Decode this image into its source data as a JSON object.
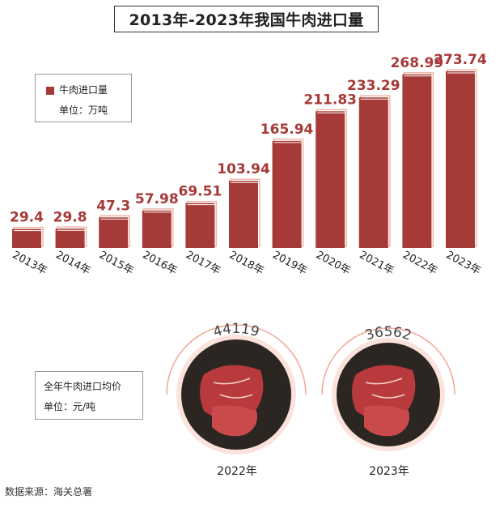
{
  "title": "2013年-2023年我国牛肉进口量",
  "legend": {
    "series_name": "牛肉进口量",
    "unit": "单位：万吨"
  },
  "chart_data": {
    "type": "bar",
    "title": "2013年-2023年我国牛肉进口量",
    "categories": [
      "2013年",
      "2014年",
      "2015年",
      "2016年",
      "2017年",
      "2018年",
      "2019年",
      "2020年",
      "2021年",
      "2022年",
      "2023年"
    ],
    "series": [
      {
        "name": "牛肉进口量",
        "values": [
          29.4,
          29.8,
          47.3,
          57.98,
          69.51,
          103.94,
          165.94,
          211.83,
          233.29,
          268.99,
          273.74
        ]
      }
    ],
    "value_labels": [
      "29.4",
      "29.8",
      "47.3",
      "57.98",
      "69.51",
      "103.94",
      "165.94",
      "211.83",
      "233.29",
      "268.99",
      "273.74"
    ],
    "ylim": [
      0,
      273.74
    ],
    "grid": false,
    "legend_position": "top-left",
    "colors": {
      "bar": "#a63a38",
      "bar_shadow": "#f0b8a8",
      "value_label": "#a63a38",
      "price_ring": "#f2a898"
    }
  },
  "price_panel": {
    "label": "全年牛肉进口均价",
    "unit": "单位：元/吨",
    "items": [
      {
        "year": "2022年",
        "price": "44119"
      },
      {
        "year": "2023年",
        "price": "36562"
      }
    ]
  },
  "source": "数据来源：海关总署"
}
